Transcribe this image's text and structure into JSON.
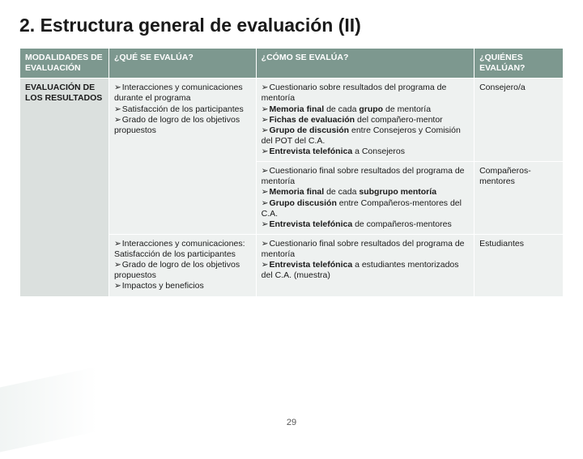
{
  "title": "2. Estructura general de evaluación (II)",
  "pageNumber": "29",
  "colors": {
    "header_bg": "#7d988f",
    "header_fg": "#ffffff",
    "rowhead_bg": "#dbe0de",
    "cell_bg": "#eef1f0",
    "text": "#1a1a1a"
  },
  "headers": {
    "c0": "MODALIDADES DE EVALUACIÓN",
    "c1": "¿QUÉ SE EVALÚA?",
    "c2": "¿CÓMO SE EVALÚA?",
    "c3": "¿QUIÉNES EVALÚAN?"
  },
  "rowhead": "EVALUACIÓN DE LOS RESULTADOS",
  "r1": {
    "que": [
      "Interacciones y comunicaciones durante el programa",
      "Satisfacción de los participantes",
      "Grado de logro de los objetivos propuestos"
    ],
    "como": [
      {
        "pre": "Cuestionario sobre resultados del programa de mentoría"
      },
      {
        "pre": "",
        "b": "Memoria final",
        "post": " de cada ",
        "b2": "grupo",
        "post2": " de mentoría"
      },
      {
        "pre": "",
        "b": "Fichas de evaluación",
        "post": " del compañero-mentor"
      },
      {
        "pre": "",
        "b": "Grupo de discusión",
        "post": " entre Consejeros y Comisión del POT del C.A."
      },
      {
        "pre": "",
        "b": "Entrevista telefónica",
        "post": " a Consejeros"
      }
    ],
    "quien": "Consejero/a"
  },
  "r2": {
    "como": [
      {
        "pre": "Cuestionario final sobre resultados del programa de mentoría"
      },
      {
        "pre": "",
        "b": "Memoria final",
        "post": " de cada ",
        "b2": "subgrupo mentoría"
      },
      {
        "pre": "",
        "b": "Grupo discusión",
        "post": " entre Compañeros-mentores del C.A."
      },
      {
        "pre": "",
        "b": "Entrevista telefónica",
        "post": " de compañeros-mentores"
      }
    ],
    "quien": "Compañeros-mentores"
  },
  "r3": {
    "que": [
      "Interacciones y comunicaciones: Satisfacción de los participantes",
      "Grado de logro de los objetivos propuestos",
      "Impactos y beneficios"
    ],
    "como": [
      {
        "pre": "Cuestionario final sobre resultados del programa de mentoría"
      },
      {
        "pre": "",
        "b": "Entrevista telefónica",
        "post": " a estudiantes mentorizados del C.A. (muestra)"
      }
    ],
    "quien": "Estudiantes"
  }
}
